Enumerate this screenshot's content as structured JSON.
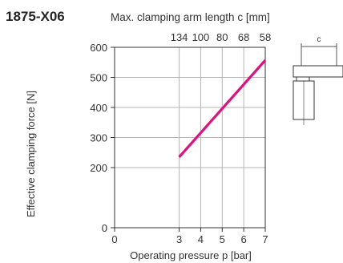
{
  "chart_data": {
    "type": "line",
    "model_label": "1875-X06",
    "top_axis_label": "Max. clamping arm length c [mm]",
    "top_ticks": [
      {
        "x": 3,
        "label": "134"
      },
      {
        "x": 4,
        "label": "100"
      },
      {
        "x": 5,
        "label": "80"
      },
      {
        "x": 6,
        "label": "68"
      },
      {
        "x": 7,
        "label": "58"
      }
    ],
    "xlabel": "Operating pressure p [bar]",
    "ylabel": "Effective clamping force [N]",
    "xlim": [
      0,
      7
    ],
    "ylim": [
      0,
      600
    ],
    "x_ticks": [
      0,
      3,
      4,
      5,
      6,
      7
    ],
    "y_ticks": [
      0,
      200,
      300,
      400,
      500,
      600
    ],
    "grid": true,
    "series": [
      {
        "color": "#e0117f",
        "x": [
          3,
          7
        ],
        "y": [
          235,
          557
        ]
      }
    ],
    "diagram_label": "c"
  }
}
